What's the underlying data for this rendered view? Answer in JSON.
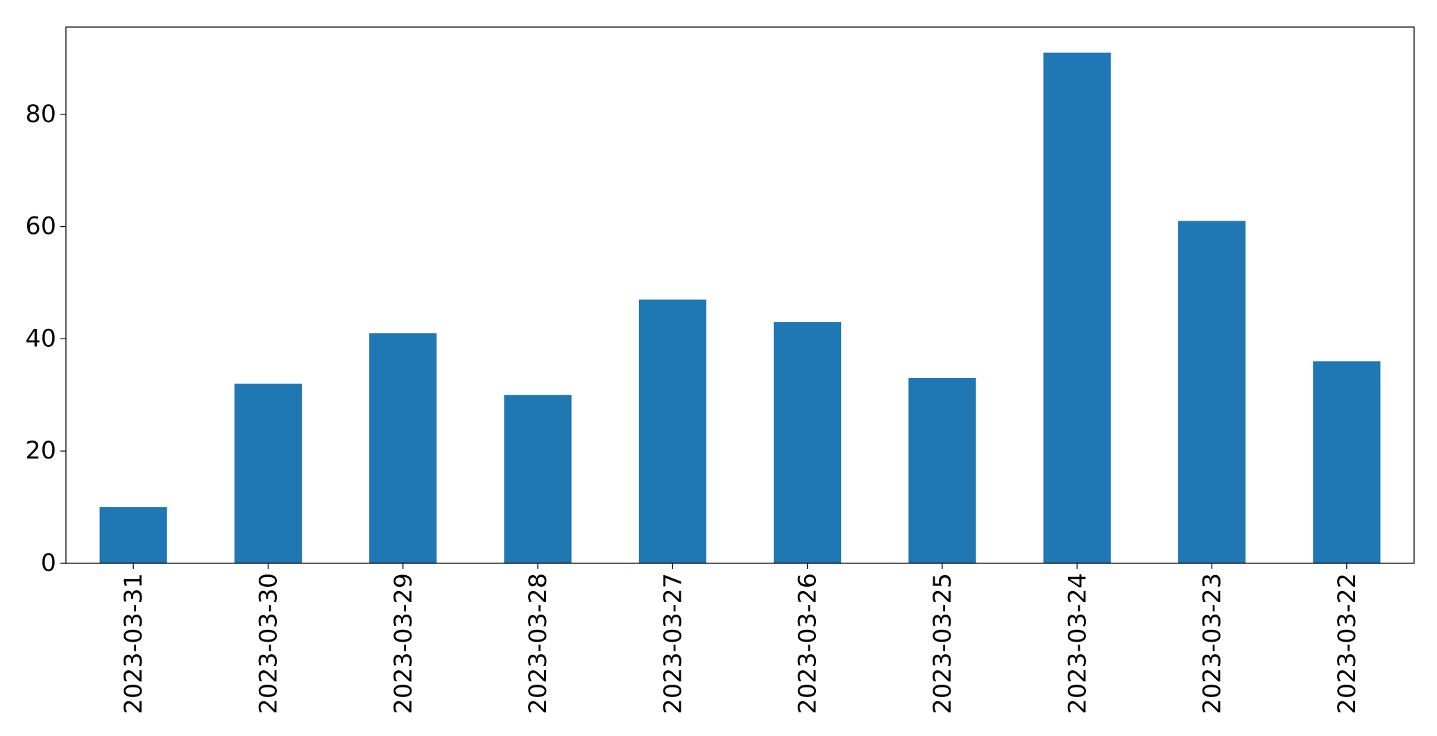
{
  "chart_data": {
    "type": "bar",
    "categories": [
      "2023-03-31",
      "2023-03-30",
      "2023-03-29",
      "2023-03-28",
      "2023-03-27",
      "2023-03-26",
      "2023-03-25",
      "2023-03-24",
      "2023-03-23",
      "2023-03-22"
    ],
    "values": [
      10,
      32,
      41,
      30,
      47,
      43,
      33,
      91,
      61,
      36
    ],
    "title": "",
    "xlabel": "",
    "ylabel": "",
    "ylim": [
      0,
      95.55
    ],
    "yticks": [
      0,
      20,
      40,
      60,
      80
    ],
    "grid": false,
    "legend": "none",
    "bar_color": "#1f77b4",
    "axis_color": "#000000"
  }
}
